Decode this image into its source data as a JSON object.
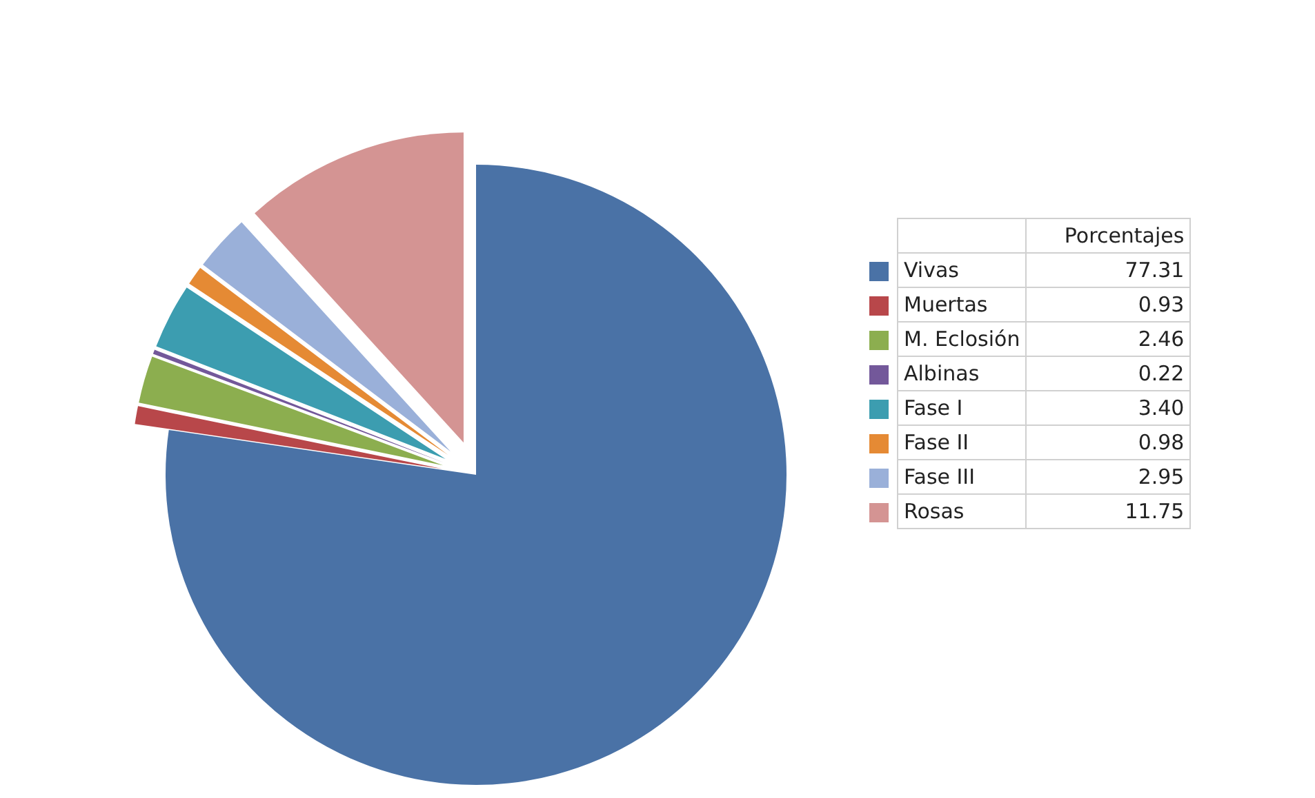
{
  "chart_data": {
    "type": "pie",
    "legend_title": "Porcentajes",
    "categories": [
      "Vivas",
      "Muertas",
      "M. Eclosión",
      "Albinas",
      "Fase I",
      "Fase II",
      "Fase III",
      "Rosas"
    ],
    "values": [
      77.31,
      0.93,
      2.46,
      0.22,
      3.4,
      0.98,
      2.95,
      11.75
    ],
    "value_labels": [
      "77.31",
      "0.93",
      "2.46",
      "0.22",
      "3.40",
      "0.98",
      "2.95",
      "11.75"
    ],
    "colors": [
      "#4a72a6",
      "#b8474a",
      "#8cae4f",
      "#73589a",
      "#3c9db0",
      "#e58a34",
      "#9ab0d9",
      "#d49493"
    ],
    "legend": "right"
  }
}
